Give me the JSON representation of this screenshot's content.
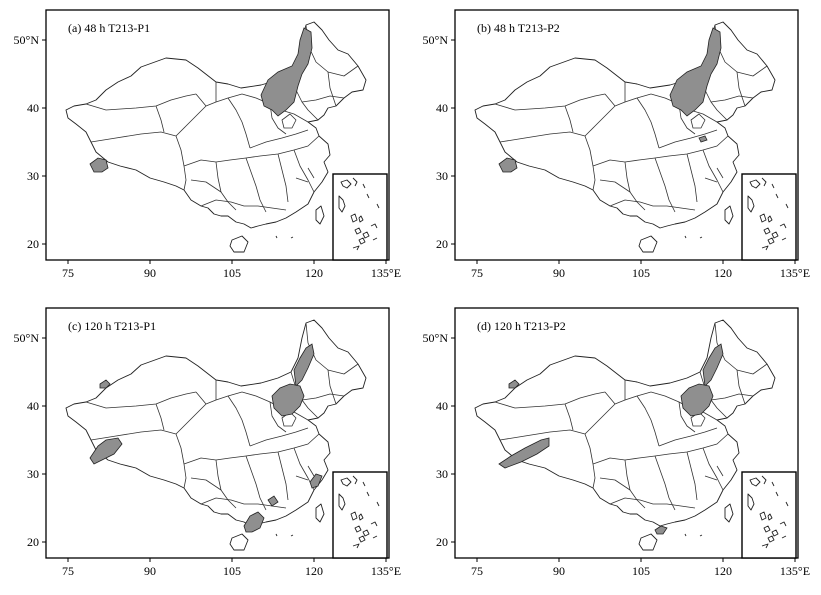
{
  "panels": [
    {
      "title": "(a)  48  h    T213-P1",
      "shaded_regions": [
        "north-china-northeast",
        "western-tibet"
      ]
    },
    {
      "title": "(b)  48  h    T213-P2",
      "shaded_regions": [
        "north-china-northeast",
        "shandong-small",
        "western-tibet"
      ]
    },
    {
      "title": "(c)  120  h    T213-P1",
      "shaded_regions": [
        "northeast",
        "north-china",
        "xinjiang-small",
        "western-tibet",
        "jiangsu",
        "fujian",
        "guangxi-guangdong"
      ]
    },
    {
      "title": "(d)  120  h    T213-P2",
      "shaded_regions": [
        "northeast",
        "north-china",
        "xinjiang-small",
        "western-tibet",
        "guangxi-small"
      ]
    }
  ],
  "axes": {
    "x_ticks": [
      "75",
      "90",
      "105",
      "120",
      "135°E"
    ],
    "y_ticks": [
      "20",
      "30",
      "40",
      "50°N"
    ]
  },
  "colors": {
    "shading": "#8f8f8f",
    "border": "#222222",
    "background": "#ffffff"
  }
}
